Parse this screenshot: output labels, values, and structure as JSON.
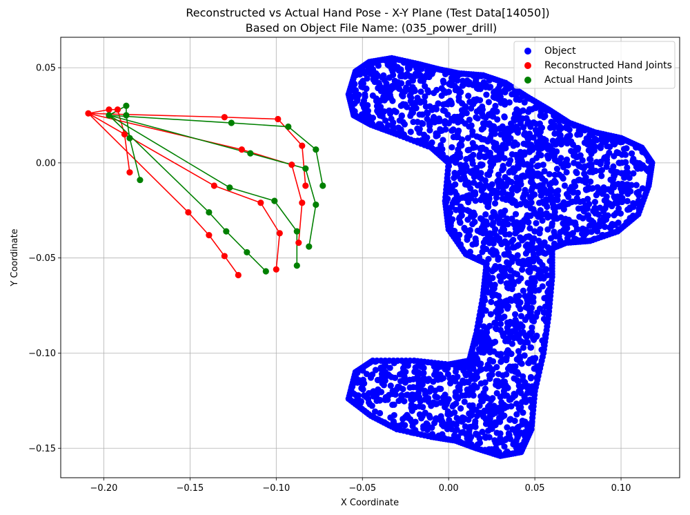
{
  "chart_data": {
    "type": "scatter",
    "title": "Reconstructed vs Actual Hand Pose - X-Y Plane (Test Data[14050])",
    "subtitle": "Based on Object File Name: (035_power_drill)",
    "xlabel": "X Coordinate",
    "ylabel": "Y Coordinate",
    "xlim": [
      -0.225,
      0.134
    ],
    "ylim": [
      -0.1655,
      0.066
    ],
    "grid": true,
    "legend_position": "top-right",
    "x_ticks": [
      {
        "value": -0.2,
        "label": "−0.20"
      },
      {
        "value": -0.15,
        "label": "−0.15"
      },
      {
        "value": -0.1,
        "label": "−0.10"
      },
      {
        "value": -0.05,
        "label": "−0.05"
      },
      {
        "value": 0.0,
        "label": "0.00"
      },
      {
        "value": 0.05,
        "label": "0.05"
      },
      {
        "value": 0.1,
        "label": "0.10"
      }
    ],
    "y_ticks": [
      {
        "value": 0.05,
        "label": "0.05"
      },
      {
        "value": 0.0,
        "label": "0.00"
      },
      {
        "value": -0.05,
        "label": "−0.05"
      },
      {
        "value": -0.1,
        "label": "−0.10"
      },
      {
        "value": -0.15,
        "label": "−0.15"
      }
    ],
    "object_series": {
      "name": "Object",
      "color": "#0000ff",
      "outline": [
        [
          -0.058,
          0.036
        ],
        [
          -0.054,
          0.048
        ],
        [
          -0.046,
          0.053
        ],
        [
          -0.033,
          0.055
        ],
        [
          -0.018,
          0.052
        ],
        [
          -0.005,
          0.049
        ],
        [
          0.006,
          0.047
        ],
        [
          0.02,
          0.046
        ],
        [
          0.033,
          0.042
        ],
        [
          0.045,
          0.035
        ],
        [
          0.058,
          0.028
        ],
        [
          0.07,
          0.021
        ],
        [
          0.085,
          0.016
        ],
        [
          0.1,
          0.013
        ],
        [
          0.112,
          0.008
        ],
        [
          0.118,
          0.0
        ],
        [
          0.116,
          -0.012
        ],
        [
          0.11,
          -0.027
        ],
        [
          0.098,
          -0.036
        ],
        [
          0.082,
          -0.041
        ],
        [
          0.068,
          -0.042
        ],
        [
          0.06,
          -0.045
        ],
        [
          0.06,
          -0.06
        ],
        [
          0.058,
          -0.08
        ],
        [
          0.055,
          -0.1
        ],
        [
          0.05,
          -0.12
        ],
        [
          0.048,
          -0.14
        ],
        [
          0.042,
          -0.152
        ],
        [
          0.03,
          -0.154
        ],
        [
          0.016,
          -0.15
        ],
        [
          0.004,
          -0.146
        ],
        [
          -0.01,
          -0.144
        ],
        [
          -0.03,
          -0.14
        ],
        [
          -0.045,
          -0.133
        ],
        [
          -0.058,
          -0.124
        ],
        [
          -0.054,
          -0.11
        ],
        [
          -0.044,
          -0.104
        ],
        [
          -0.02,
          -0.104
        ],
        [
          0.0,
          -0.106
        ],
        [
          0.012,
          -0.104
        ],
        [
          0.016,
          -0.09
        ],
        [
          0.02,
          -0.07
        ],
        [
          0.022,
          -0.053
        ],
        [
          0.01,
          -0.048
        ],
        [
          0.0,
          -0.035
        ],
        [
          -0.002,
          -0.02
        ],
        [
          0.0,
          0.0
        ],
        [
          -0.01,
          0.008
        ],
        [
          -0.03,
          0.015
        ],
        [
          -0.045,
          0.02
        ],
        [
          -0.055,
          0.025
        ]
      ]
    },
    "series": [
      {
        "name": "Reconstructed Hand Joints",
        "color": "#ff0000",
        "points": [
          [
            -0.209,
            0.026
          ],
          [
            -0.197,
            0.028
          ],
          [
            -0.192,
            0.028
          ],
          [
            -0.188,
            0.015
          ],
          [
            -0.185,
            -0.005
          ],
          [
            -0.13,
            0.024
          ],
          [
            -0.099,
            0.023
          ],
          [
            -0.085,
            0.009
          ],
          [
            -0.083,
            -0.012
          ],
          [
            -0.12,
            0.007
          ],
          [
            -0.091,
            -0.001
          ],
          [
            -0.085,
            -0.021
          ],
          [
            -0.087,
            -0.042
          ],
          [
            -0.136,
            -0.012
          ],
          [
            -0.109,
            -0.021
          ],
          [
            -0.098,
            -0.037
          ],
          [
            -0.1,
            -0.056
          ],
          [
            -0.151,
            -0.026
          ],
          [
            -0.139,
            -0.038
          ],
          [
            -0.13,
            -0.049
          ],
          [
            -0.122,
            -0.059
          ]
        ],
        "bones": [
          [
            0,
            1
          ],
          [
            1,
            2
          ],
          [
            2,
            3
          ],
          [
            3,
            4
          ],
          [
            0,
            5
          ],
          [
            5,
            6
          ],
          [
            6,
            7
          ],
          [
            7,
            8
          ],
          [
            0,
            9
          ],
          [
            9,
            10
          ],
          [
            10,
            11
          ],
          [
            11,
            12
          ],
          [
            0,
            13
          ],
          [
            13,
            14
          ],
          [
            14,
            15
          ],
          [
            15,
            16
          ],
          [
            0,
            17
          ],
          [
            17,
            18
          ],
          [
            18,
            19
          ],
          [
            19,
            20
          ]
        ]
      },
      {
        "name": "Actual Hand Joints",
        "color": "#008000",
        "points": [
          [
            -0.197,
            0.025
          ],
          [
            -0.187,
            0.03
          ],
          [
            -0.187,
            0.025
          ],
          [
            -0.185,
            0.013
          ],
          [
            -0.179,
            -0.009
          ],
          [
            -0.126,
            0.021
          ],
          [
            -0.093,
            0.019
          ],
          [
            -0.077,
            0.007
          ],
          [
            -0.073,
            -0.012
          ],
          [
            -0.115,
            0.005
          ],
          [
            -0.083,
            -0.003
          ],
          [
            -0.077,
            -0.022
          ],
          [
            -0.081,
            -0.044
          ],
          [
            -0.127,
            -0.013
          ],
          [
            -0.101,
            -0.02
          ],
          [
            -0.088,
            -0.036
          ],
          [
            -0.088,
            -0.054
          ],
          [
            -0.139,
            -0.026
          ],
          [
            -0.129,
            -0.036
          ],
          [
            -0.117,
            -0.047
          ],
          [
            -0.106,
            -0.057
          ]
        ],
        "bones": [
          [
            0,
            1
          ],
          [
            1,
            2
          ],
          [
            2,
            3
          ],
          [
            3,
            4
          ],
          [
            0,
            5
          ],
          [
            5,
            6
          ],
          [
            6,
            7
          ],
          [
            7,
            8
          ],
          [
            0,
            9
          ],
          [
            9,
            10
          ],
          [
            10,
            11
          ],
          [
            11,
            12
          ],
          [
            0,
            13
          ],
          [
            13,
            14
          ],
          [
            14,
            15
          ],
          [
            15,
            16
          ],
          [
            0,
            17
          ],
          [
            17,
            18
          ],
          [
            18,
            19
          ],
          [
            19,
            20
          ]
        ]
      }
    ]
  }
}
